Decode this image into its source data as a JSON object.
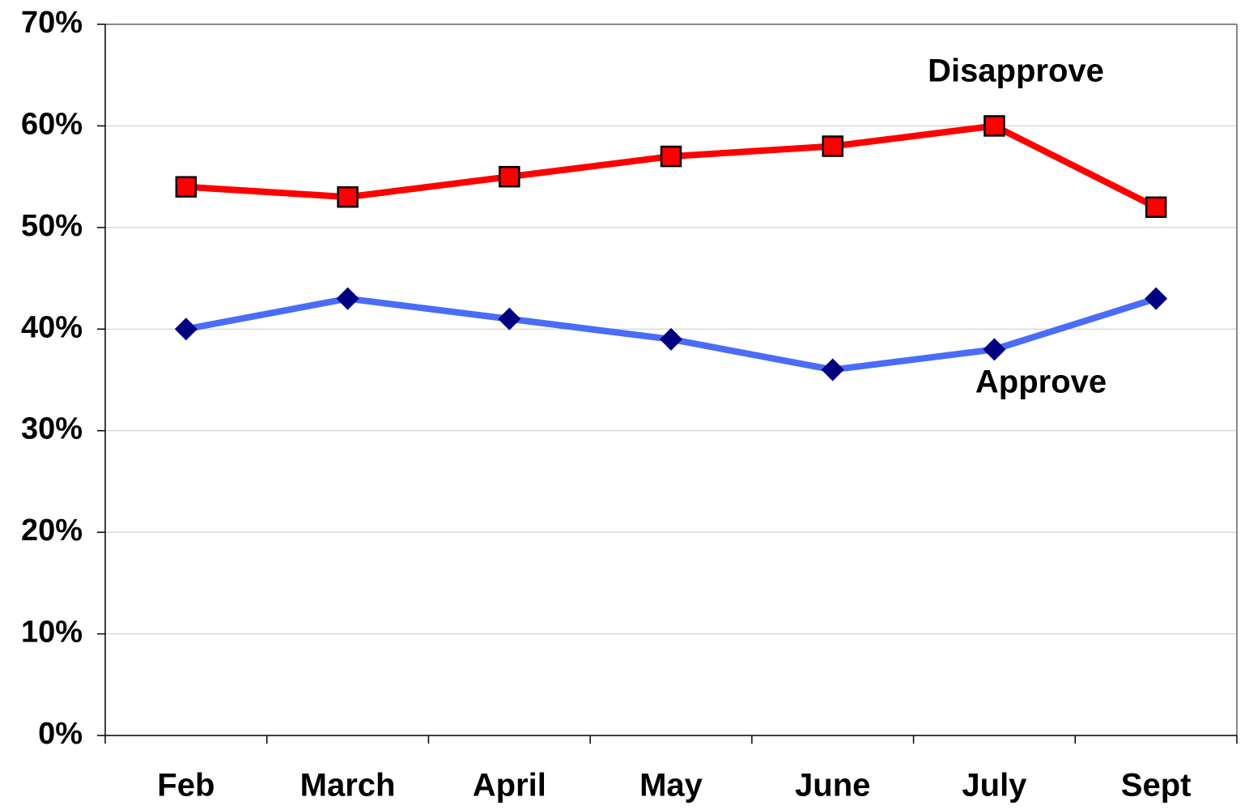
{
  "chart_data": {
    "type": "line",
    "categories": [
      "Feb",
      "March",
      "April",
      "May",
      "June",
      "July",
      "Sept"
    ],
    "series": [
      {
        "name": "Disapprove",
        "color": "#ff0000",
        "marker_color": "#ff0000",
        "marker": "square",
        "values": [
          54,
          53,
          55,
          57,
          58,
          60,
          52
        ]
      },
      {
        "name": "Approve",
        "color": "#4a6cf7",
        "marker_color": "#000080",
        "marker": "diamond",
        "values": [
          40,
          43,
          41,
          39,
          36,
          38,
          43
        ]
      }
    ],
    "ylim": [
      0,
      70
    ],
    "yticks": [
      {
        "value": 0,
        "label": "0%"
      },
      {
        "value": 10,
        "label": "10%"
      },
      {
        "value": 20,
        "label": "20%"
      },
      {
        "value": 30,
        "label": "30%"
      },
      {
        "value": 40,
        "label": "40%"
      },
      {
        "value": 50,
        "label": "50%"
      },
      {
        "value": 60,
        "label": "60%"
      },
      {
        "value": 70,
        "label": "70%"
      }
    ],
    "grid": true
  }
}
